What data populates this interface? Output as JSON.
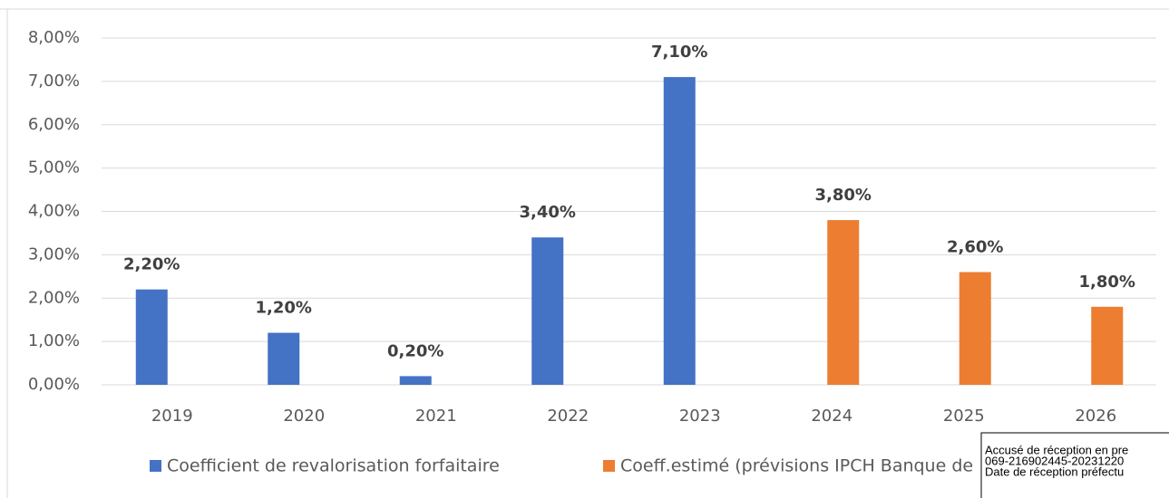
{
  "chart_data": {
    "type": "bar",
    "categories": [
      "2019",
      "2020",
      "2021",
      "2022",
      "2023",
      "2024",
      "2025",
      "2026"
    ],
    "series": [
      {
        "name": "Coefficient de revalorisation forfaitaire",
        "color": "#4472c4",
        "values": [
          2.2,
          1.2,
          0.2,
          3.4,
          7.1,
          null,
          null,
          null
        ],
        "value_labels": [
          "2,20%",
          "1,20%",
          "0,20%",
          "3,40%",
          "7,10%",
          null,
          null,
          null
        ]
      },
      {
        "name": "Coeff.estimé (prévisions IPCH Banque de",
        "color": "#ed7d31",
        "values": [
          null,
          null,
          null,
          null,
          null,
          3.8,
          2.6,
          1.8
        ],
        "value_labels": [
          null,
          null,
          null,
          null,
          null,
          "3,80%",
          "2,60%",
          "1,80%"
        ]
      }
    ],
    "ylim": [
      0,
      8
    ],
    "yticks": [
      {
        "value": 0,
        "label": "0,00%"
      },
      {
        "value": 1,
        "label": "1,00%"
      },
      {
        "value": 2,
        "label": "2,00%"
      },
      {
        "value": 3,
        "label": "3,00%"
      },
      {
        "value": 4,
        "label": "4,00%"
      },
      {
        "value": 5,
        "label": "5,00%"
      },
      {
        "value": 6,
        "label": "6,00%"
      },
      {
        "value": 7,
        "label": "7,00%"
      },
      {
        "value": 8,
        "label": "8,00%"
      }
    ],
    "grid": true,
    "legend": "bottom",
    "annotations": [
      "Accusé de réception en pre",
      "069-216902445-20231220",
      "Date de réception préfectu"
    ]
  }
}
